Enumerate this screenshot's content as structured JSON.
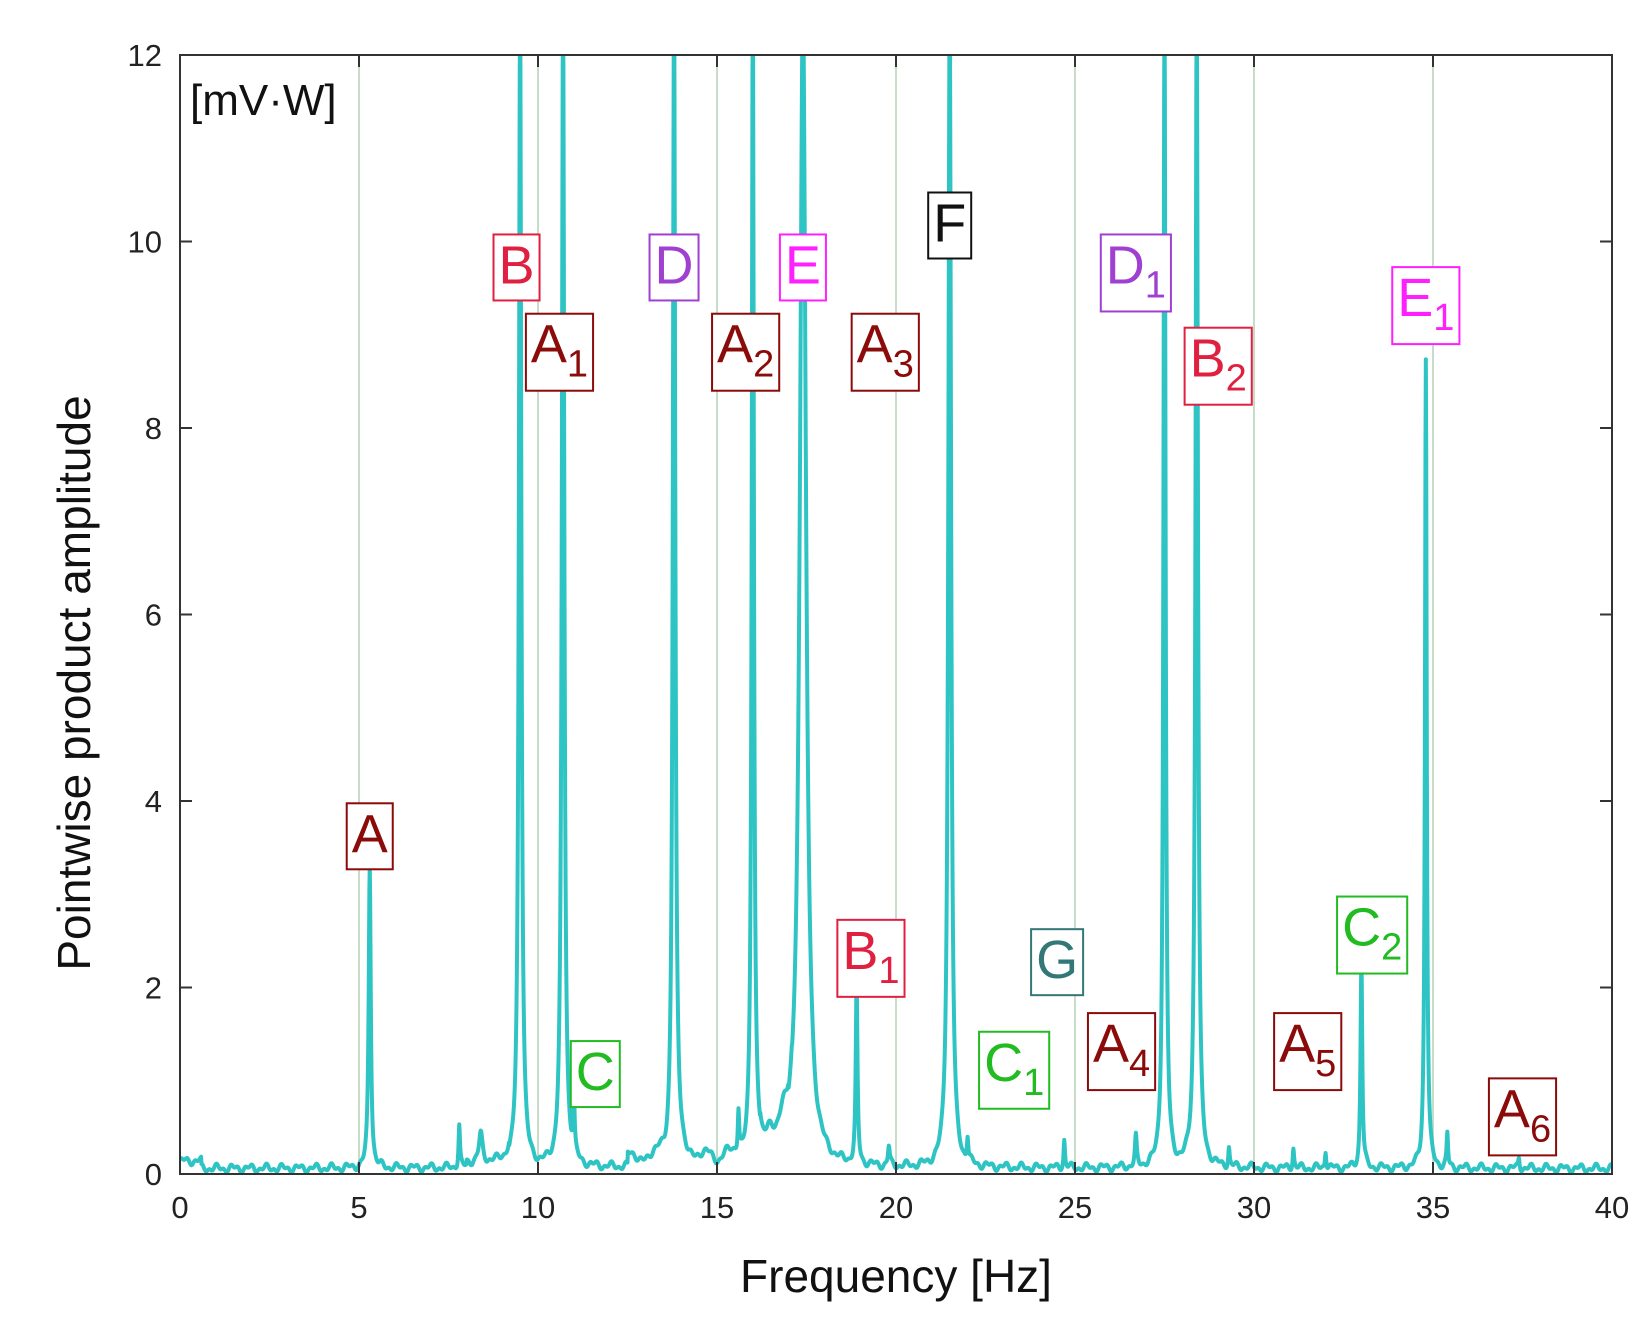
{
  "chart_data": {
    "type": "line",
    "title": "",
    "xlabel": "Frequency [Hz]",
    "ylabel": "Pointwise product amplitude",
    "unit_label": "[mV·W]",
    "xlim": [
      0,
      40
    ],
    "ylim": [
      0,
      12
    ],
    "xticks": [
      0,
      5,
      10,
      15,
      20,
      25,
      30,
      35,
      40
    ],
    "yticks": [
      0,
      2,
      4,
      6,
      8,
      10,
      12
    ],
    "grid": "vertical",
    "line_color": "#2ec4c4",
    "grid_color": "#c8ddc8",
    "peaks": [
      {
        "x": 5.3,
        "y": 3.25,
        "width": 0.12
      },
      {
        "x": 7.8,
        "y": 0.45,
        "width": 0.08
      },
      {
        "x": 8.4,
        "y": 0.3,
        "width": 0.2
      },
      {
        "x": 9.5,
        "y": 12.5,
        "width": 0.14
      },
      {
        "x": 10.7,
        "y": 12.5,
        "width": 0.14
      },
      {
        "x": 11.0,
        "y": 0.7,
        "width": 0.08
      },
      {
        "x": 13.8,
        "y": 12.5,
        "width": 0.14
      },
      {
        "x": 15.6,
        "y": 0.45,
        "width": 0.08
      },
      {
        "x": 16.0,
        "y": 12.5,
        "width": 0.12
      },
      {
        "x": 17.4,
        "y": 12.5,
        "width": 0.35
      },
      {
        "x": 18.9,
        "y": 1.9,
        "width": 0.1
      },
      {
        "x": 19.8,
        "y": 0.2,
        "width": 0.1
      },
      {
        "x": 21.5,
        "y": 12.5,
        "width": 0.16
      },
      {
        "x": 22.0,
        "y": 0.25,
        "width": 0.08
      },
      {
        "x": 24.7,
        "y": 0.3,
        "width": 0.08
      },
      {
        "x": 26.7,
        "y": 0.3,
        "width": 0.1
      },
      {
        "x": 27.5,
        "y": 12.5,
        "width": 0.12
      },
      {
        "x": 28.4,
        "y": 12.5,
        "width": 0.14
      },
      {
        "x": 29.3,
        "y": 0.2,
        "width": 0.08
      },
      {
        "x": 31.1,
        "y": 0.22,
        "width": 0.08
      },
      {
        "x": 32.0,
        "y": 0.2,
        "width": 0.08
      },
      {
        "x": 33.0,
        "y": 2.25,
        "width": 0.1
      },
      {
        "x": 34.8,
        "y": 8.7,
        "width": 0.1
      },
      {
        "x": 35.4,
        "y": 0.35,
        "width": 0.08
      },
      {
        "x": 37.4,
        "y": 0.12,
        "width": 0.08
      }
    ],
    "annotations": [
      {
        "main": "A",
        "sub": "",
        "color": "#8b0a0a",
        "x": 5.3,
        "y": 3.45
      },
      {
        "main": "B",
        "sub": "",
        "color": "#e02040",
        "x": 9.4,
        "y": 9.55
      },
      {
        "main": "A",
        "sub": "1",
        "color": "#8b0a0a",
        "x": 10.6,
        "y": 8.7
      },
      {
        "main": "C",
        "sub": "",
        "color": "#22bb22",
        "x": 11.6,
        "y": 0.9
      },
      {
        "main": "D",
        "sub": "",
        "color": "#a040d0",
        "x": 13.8,
        "y": 9.55
      },
      {
        "main": "A",
        "sub": "2",
        "color": "#8b0a0a",
        "x": 15.8,
        "y": 8.7
      },
      {
        "main": "E",
        "sub": "",
        "color": "#ff20ff",
        "x": 17.4,
        "y": 9.55
      },
      {
        "main": "A",
        "sub": "3",
        "color": "#8b0a0a",
        "x": 19.7,
        "y": 8.7
      },
      {
        "main": "F",
        "sub": "",
        "color": "#111111",
        "x": 21.5,
        "y": 10.0
      },
      {
        "main": "B",
        "sub": "1",
        "color": "#e02040",
        "x": 19.3,
        "y": 2.2
      },
      {
        "main": "G",
        "sub": "",
        "color": "#337777",
        "x": 24.5,
        "y": 2.1
      },
      {
        "main": "C",
        "sub": "1",
        "color": "#22bb22",
        "x": 23.3,
        "y": 1.0
      },
      {
        "main": "D",
        "sub": "1",
        "color": "#a040d0",
        "x": 26.7,
        "y": 9.55
      },
      {
        "main": "A",
        "sub": "4",
        "color": "#8b0a0a",
        "x": 26.3,
        "y": 1.2
      },
      {
        "main": "B",
        "sub": "2",
        "color": "#e02040",
        "x": 29.0,
        "y": 8.55
      },
      {
        "main": "A",
        "sub": "5",
        "color": "#8b0a0a",
        "x": 31.5,
        "y": 1.2
      },
      {
        "main": "E",
        "sub": "1",
        "color": "#ff20ff",
        "x": 34.8,
        "y": 9.2
      },
      {
        "main": "C",
        "sub": "2",
        "color": "#22bb22",
        "x": 33.3,
        "y": 2.45
      },
      {
        "main": "A",
        "sub": "6",
        "color": "#8b0a0a",
        "x": 37.5,
        "y": 0.5
      }
    ]
  }
}
